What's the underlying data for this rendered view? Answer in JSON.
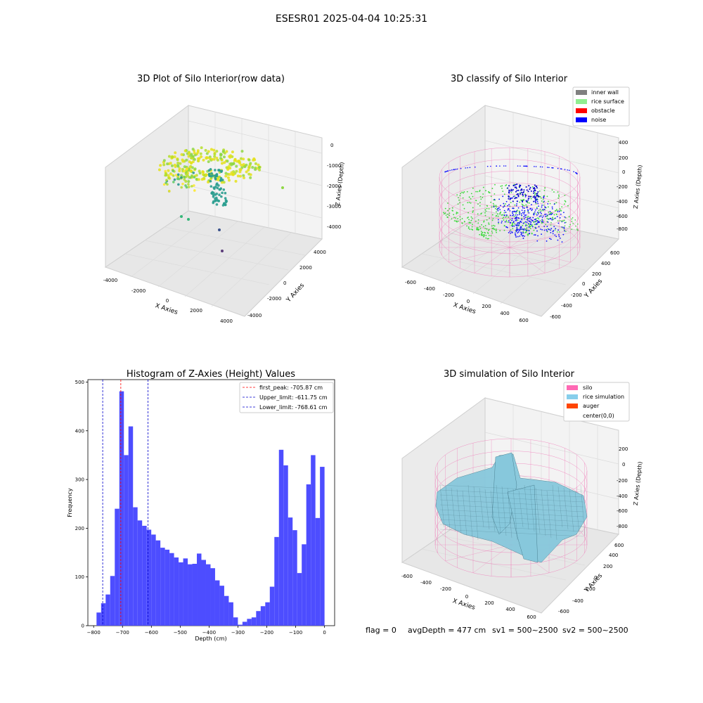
{
  "figure_title": "ESESR01 2025-04-04 10:25:31",
  "footer": {
    "flag": "flag = 0",
    "avg_depth": "avgDepth = 477 cm",
    "sv1": "sv1 = 500~2500",
    "sv2": "sv2 = 500~2500"
  },
  "colors": {
    "hist_bar": "#4d4dff",
    "first_peak": "#ff0000",
    "limits": "#0000cc",
    "inner_wall": "#808080",
    "rice_surface": "#90ee90",
    "obstacle": "#ff0000",
    "noise": "#0000ff",
    "silo": "#ff69b4",
    "rice_simulation": "#87ceeb",
    "auger": "#ff4500",
    "silo_mesh": "#f06bb0",
    "rice_mesh_fill": "#87c8dc"
  },
  "chart_data": [
    {
      "type": "scatter3d",
      "title": "3D Plot of Silo Interior(row data)",
      "xlabel": "X Axies",
      "ylabel": "Y Axies",
      "zlabel": "Z Axies (Depth)",
      "xlim": [
        -4000,
        4000
      ],
      "ylim": [
        -4000,
        4000
      ],
      "zlim": [
        -4000,
        0
      ],
      "x_ticks": [
        "-4000",
        "-2000",
        "0",
        "2000",
        "4000"
      ],
      "y_ticks": [
        "-4000",
        "-2000",
        "0",
        "2000",
        "4000"
      ],
      "z_ticks": [
        "0",
        "-1000",
        "-2000",
        "-3000",
        "-4000"
      ],
      "colormap": "viridis"
    },
    {
      "type": "scatter3d",
      "title": "3D classify of Silo Interior",
      "xlabel": "X Axies",
      "ylabel": "Y Axies",
      "zlabel": "Z Axies (Depth)",
      "xlim": [
        -600,
        600
      ],
      "ylim": [
        -600,
        600
      ],
      "zlim": [
        -900,
        400
      ],
      "x_ticks": [
        "-600",
        "-400",
        "-200",
        "0",
        "200",
        "400",
        "600"
      ],
      "y_ticks": [
        "-600",
        "-400",
        "-200",
        "0",
        "200",
        "400",
        "600"
      ],
      "z_ticks": [
        "400",
        "200",
        "0",
        "-200",
        "-400",
        "-600",
        "-800"
      ],
      "legend": [
        "inner wall",
        "rice surface",
        "obstacle",
        "noise"
      ],
      "legend_position": "top-right"
    },
    {
      "type": "bar",
      "title": "Histogram of Z-Axies (Height) Values",
      "xlabel": "Depth (cm)",
      "ylabel": "Frequency",
      "xlim": [
        -820,
        35
      ],
      "ylim": [
        0,
        505
      ],
      "x_ticks": [
        -800,
        -700,
        -600,
        -500,
        -400,
        -300,
        -200,
        -100,
        0
      ],
      "x_tick_labels": [
        "−800",
        "−700",
        "−600",
        "−500",
        "−400",
        "−300",
        "−200",
        "−100",
        "0"
      ],
      "y_ticks": [
        0,
        100,
        200,
        300,
        400,
        500
      ],
      "y_tick_labels": [
        "0",
        "100",
        "200",
        "300",
        "400",
        "500"
      ],
      "bin_start": -790,
      "bin_width": 15.8,
      "values": [
        27,
        46,
        64,
        102,
        240,
        481,
        350,
        409,
        243,
        216,
        205,
        197,
        187,
        175,
        160,
        156,
        149,
        140,
        130,
        138,
        126,
        127,
        148,
        135,
        126,
        118,
        93,
        82,
        61,
        48,
        17,
        2,
        8,
        14,
        17,
        30,
        40,
        48,
        80,
        182,
        361,
        329,
        222,
        196,
        108,
        167,
        290,
        350,
        221,
        326
      ],
      "vlines": [
        {
          "label": "first_peak: -705.87 cm",
          "x": -705.87,
          "color": "#ff0000"
        },
        {
          "label": "Upper_limit: -611.75 cm",
          "x": -611.75,
          "color": "#0000cc"
        },
        {
          "label": "Lower_limit: -768.61 cm",
          "x": -768.61,
          "color": "#0000cc"
        }
      ],
      "legend_position": "top-right"
    },
    {
      "type": "surface3d",
      "title": "3D simulation of Silo Interior",
      "xlabel": "X Axies",
      "ylabel": "Y Axies",
      "zlabel": "Z Axies (Depth)",
      "xlim": [
        -600,
        600
      ],
      "ylim": [
        -600,
        600
      ],
      "zlim": [
        -900,
        300
      ],
      "x_ticks": [
        "-600",
        "-400",
        "-200",
        "0",
        "200",
        "400",
        "600"
      ],
      "y_ticks": [
        "-600",
        "-400",
        "-200",
        "0",
        "200",
        "400",
        "600"
      ],
      "z_ticks": [
        "200",
        "0",
        "-200",
        "-400",
        "-600",
        "-800"
      ],
      "legend": [
        "silo",
        "rice simulation",
        "auger",
        "center(0,0)"
      ],
      "legend_position": "top-right"
    }
  ]
}
